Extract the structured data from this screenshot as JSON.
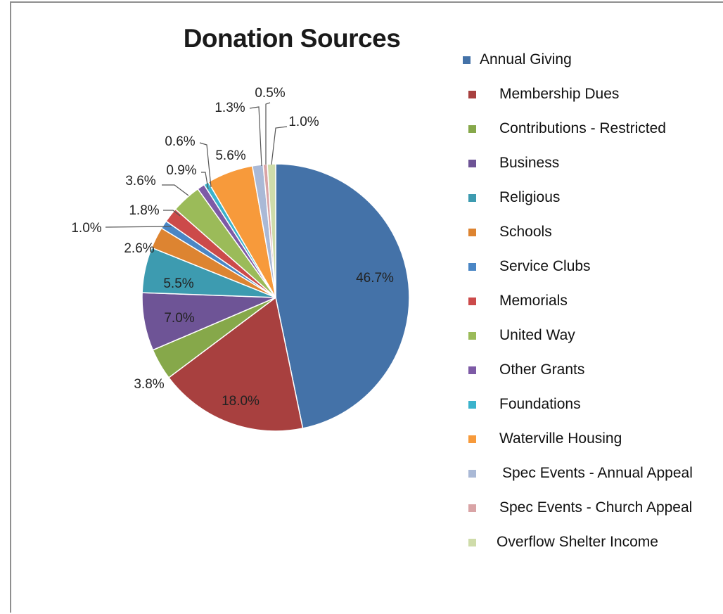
{
  "chart_data": {
    "type": "pie",
    "title": "Donation Sources",
    "slices": [
      {
        "label": "Annual Giving",
        "value": 46.7,
        "value_label": "46.7%",
        "color": "#4472a8"
      },
      {
        "label": "Membership Dues",
        "value": 18.0,
        "value_label": "18.0%",
        "color": "#a8403f"
      },
      {
        "label": "Contributions - Restricted",
        "value": 3.8,
        "value_label": "3.8%",
        "color": "#86a84a"
      },
      {
        "label": "Business",
        "value": 7.0,
        "value_label": "7.0%",
        "color": "#6e5496"
      },
      {
        "label": "Religious",
        "value": 5.5,
        "value_label": "5.5%",
        "color": "#3d9bb0"
      },
      {
        "label": "Schools",
        "value": 2.6,
        "value_label": "2.6%",
        "color": "#dd8431"
      },
      {
        "label": "Service Clubs",
        "value": 1.0,
        "value_label": "1.0%",
        "color": "#4a86c5"
      },
      {
        "label": "Memorials",
        "value": 1.8,
        "value_label": "1.8%",
        "color": "#cc4a4a"
      },
      {
        "label": "United Way",
        "value": 3.6,
        "value_label": "3.6%",
        "color": "#9bbb59"
      },
      {
        "label": "Other Grants",
        "value": 0.9,
        "value_label": "0.9%",
        "color": "#7d5aa6"
      },
      {
        "label": "Foundations",
        "value": 0.6,
        "value_label": "0.6%",
        "color": "#3bb3cc"
      },
      {
        "label": "Waterville Housing",
        "value": 5.6,
        "value_label": "5.6%",
        "color": "#f79a3b"
      },
      {
        "label": "Spec Events - Annual Appeal",
        "value": 1.3,
        "value_label": "1.3%",
        "color": "#aab9d6"
      },
      {
        "label": "Spec Events - Church Appeal",
        "value": 0.5,
        "value_label": "0.5%",
        "color": "#d9a4a6"
      },
      {
        "label": "Overflow Shelter Income",
        "value": 1.0,
        "value_label": "1.0%",
        "color": "#cfdcaa"
      }
    ],
    "legend_position": "right"
  }
}
